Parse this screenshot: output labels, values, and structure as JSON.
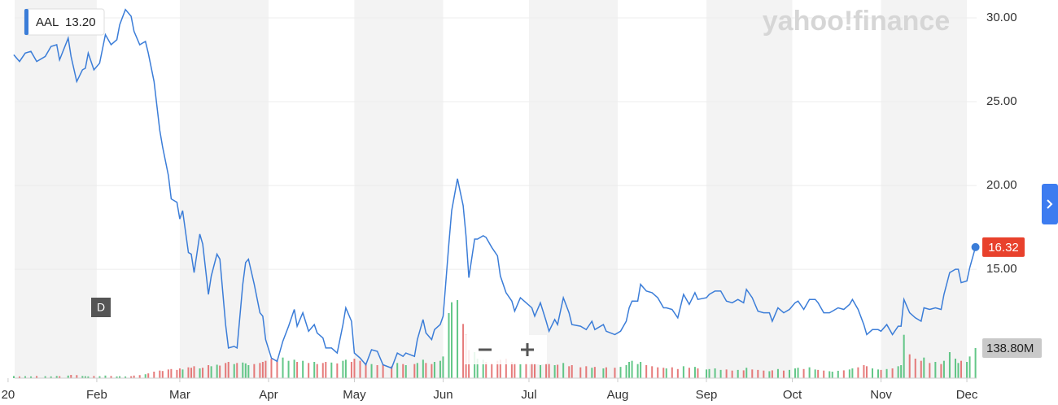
{
  "chart_data": {
    "type": "line",
    "watermark": "yahoo!finance",
    "interval": "D",
    "hover_value": "13.20",
    "x": [
      3,
      5,
      7,
      9,
      11,
      14,
      16,
      18,
      19,
      22,
      23,
      25,
      27,
      28,
      29,
      31,
      33,
      35,
      37,
      39,
      40,
      42,
      44,
      45,
      47,
      49,
      50,
      52,
      54,
      55,
      57,
      58,
      60,
      61,
      62,
      64,
      65,
      66,
      68,
      69,
      71,
      72,
      74,
      75,
      77,
      78,
      80,
      81,
      83,
      84,
      85,
      87,
      89,
      90,
      91,
      93,
      95,
      97,
      99,
      101,
      102,
      104,
      106,
      108,
      109,
      111,
      112,
      114,
      116,
      118,
      119,
      121,
      122,
      124,
      126,
      128,
      130,
      132,
      135,
      137,
      139,
      140,
      143,
      144,
      146,
      147,
      149,
      150,
      152,
      153,
      155,
      156,
      158,
      160,
      161,
      162,
      164,
      165,
      167,
      168,
      170,
      172,
      173,
      175,
      177,
      178,
      180,
      182,
      184,
      185,
      187,
      189,
      190,
      192,
      193,
      195,
      197,
      198,
      201,
      203,
      205,
      206,
      209,
      210,
      213,
      215,
      217,
      218,
      219,
      221,
      222,
      224,
      226,
      228,
      230,
      231,
      233,
      235,
      237,
      239,
      241,
      242,
      245,
      246,
      248,
      250,
      252,
      254,
      256,
      258,
      259,
      261,
      263,
      265,
      267,
      268,
      270,
      272,
      274,
      276,
      277,
      279,
      281,
      283,
      284,
      286,
      288,
      289,
      291,
      293,
      295,
      296,
      298,
      300,
      301,
      303,
      305,
      306,
      308,
      310,
      312,
      313,
      314,
      316,
      318,
      320,
      321,
      323,
      325,
      327,
      328,
      330,
      332,
      333,
      334,
      336,
      337,
      339
    ],
    "series": [
      {
        "name": "AAL",
        "color": "#3b7dd8",
        "values": [
          27.8,
          27.4,
          27.9,
          28.0,
          27.4,
          27.7,
          28.3,
          28.4,
          27.5,
          28.8,
          27.7,
          26.2,
          26.9,
          27.0,
          27.9,
          26.9,
          27.3,
          29.0,
          28.4,
          28.7,
          29.6,
          30.5,
          30.1,
          29.2,
          28.4,
          28.6,
          27.9,
          26.2,
          23.3,
          22.3,
          20.6,
          19.2,
          19.0,
          18.0,
          18.5,
          16.0,
          15.9,
          14.8,
          17.1,
          16.5,
          13.5,
          14.6,
          15.9,
          15.6,
          11.7,
          10.3,
          10.4,
          10.3,
          14.1,
          15.4,
          15.6,
          14.1,
          12.4,
          12.2,
          10.8,
          9.7,
          9.5,
          10.7,
          11.6,
          12.6,
          11.6,
          12.4,
          11.3,
          11.7,
          11.2,
          10.9,
          10.3,
          10.3,
          10.0,
          11.7,
          12.7,
          11.9,
          10.0,
          9.7,
          9.3,
          10.2,
          10.1,
          9.3,
          9.1,
          10.0,
          9.8,
          10.0,
          9.8,
          10.8,
          12.0,
          11.2,
          10.8,
          11.4,
          11.7,
          12.2,
          16.5,
          18.5,
          20.4,
          18.8,
          17.0,
          14.5,
          16.8,
          16.8,
          17.0,
          16.9,
          16.3,
          15.8,
          14.6,
          13.6,
          13.1,
          12.5,
          13.3,
          13.0,
          12.7,
          12.2,
          13.0,
          11.9,
          11.3,
          12.0,
          11.7,
          13.3,
          12.4,
          11.7,
          11.6,
          11.4,
          11.9,
          11.4,
          11.7,
          11.3,
          11.1,
          11.3,
          11.9,
          12.7,
          13.1,
          13.1,
          14.1,
          13.7,
          13.6,
          13.3,
          12.7,
          12.7,
          12.6,
          12.1,
          13.5,
          12.9,
          13.6,
          13.2,
          13.3,
          13.5,
          13.7,
          13.7,
          13.1,
          13.0,
          13.2,
          13.0,
          13.8,
          13.3,
          12.5,
          12.4,
          12.4,
          11.9,
          12.7,
          12.4,
          12.6,
          13.0,
          13.1,
          12.6,
          13.2,
          13.2,
          13.0,
          12.4,
          12.4,
          12.5,
          12.7,
          12.6,
          12.9,
          13.2,
          12.6,
          11.7,
          11.1,
          11.4,
          11.4,
          11.3,
          11.7,
          11.1,
          11.6,
          11.6,
          13.2,
          12.4,
          12.1,
          11.9,
          12.7,
          12.6,
          12.7,
          12.6,
          13.5,
          14.8,
          15.0,
          15.0,
          14.2,
          14.3,
          15.1,
          16.32
        ]
      }
    ],
    "volume": {
      "axis": "y2",
      "up_color": "#3cb96a",
      "down_color": "#e05a5a",
      "values": [
        10,
        8,
        9,
        8,
        10,
        9,
        8,
        10,
        9,
        12,
        15,
        14,
        10,
        9,
        8,
        10,
        9,
        12,
        10,
        8,
        9,
        8,
        9,
        12,
        14,
        18,
        22,
        30,
        35,
        33,
        40,
        42,
        38,
        45,
        40,
        50,
        48,
        55,
        45,
        48,
        60,
        55,
        62,
        58,
        70,
        75,
        65,
        70,
        72,
        68,
        60,
        65,
        70,
        75,
        80,
        90,
        85,
        95,
        80,
        85,
        75,
        80,
        70,
        75,
        65,
        70,
        75,
        72,
        68,
        80,
        85,
        75,
        90,
        80,
        70,
        65,
        60,
        62,
        55,
        70,
        65,
        60,
        65,
        70,
        85,
        70,
        65,
        75,
        80,
        100,
        300,
        350,
        360,
        250,
        200,
        130,
        120,
        90,
        85,
        75,
        70,
        80,
        85,
        90,
        75,
        70,
        65,
        70,
        72,
        68,
        60,
        70,
        65,
        60,
        62,
        70,
        55,
        60,
        50,
        55,
        48,
        52,
        45,
        50,
        48,
        52,
        60,
        75,
        80,
        65,
        75,
        60,
        55,
        50,
        48,
        45,
        50,
        42,
        55,
        48,
        52,
        45,
        40,
        42,
        45,
        38,
        40,
        35,
        38,
        36,
        48,
        40,
        38,
        35,
        32,
        36,
        42,
        35,
        38,
        45,
        48,
        42,
        50,
        40,
        38,
        35,
        32,
        30,
        34,
        36,
        40,
        45,
        50,
        60,
        55,
        45,
        40,
        38,
        42,
        45,
        55,
        60,
        200,
        110,
        90,
        80,
        95,
        70,
        75,
        65,
        80,
        120,
        90,
        70,
        80,
        75,
        100,
        138.8
      ]
    },
    "last_price": {
      "value": 16.32,
      "label": "16.32",
      "color": "#e8412c"
    },
    "last_volume": {
      "value": 138.8,
      "label": "138.80M"
    },
    "xlim": [
      3.3,
      339.4
    ],
    "xticks": [
      {
        "value": 1,
        "label": "20"
      },
      {
        "value": 32,
        "label": "Feb"
      },
      {
        "value": 61,
        "label": "Mar"
      },
      {
        "value": 92,
        "label": "Apr"
      },
      {
        "value": 122,
        "label": "May"
      },
      {
        "value": 153,
        "label": "Jun"
      },
      {
        "value": 183,
        "label": "Jul"
      },
      {
        "value": 214,
        "label": "Aug"
      },
      {
        "value": 245,
        "label": "Sep"
      },
      {
        "value": 275,
        "label": "Oct"
      },
      {
        "value": 306,
        "label": "Nov"
      },
      {
        "value": 336,
        "label": "Dec"
      }
    ],
    "ylim": [
      8.5,
      31.07
    ],
    "yticks": [
      {
        "value": 15,
        "label": "15.00"
      },
      {
        "value": 20,
        "label": "20.00"
      },
      {
        "value": 25,
        "label": "25.00"
      },
      {
        "value": 30,
        "label": "30.00"
      }
    ],
    "y2lim": [
      0,
      1744
    ],
    "grid": true
  }
}
